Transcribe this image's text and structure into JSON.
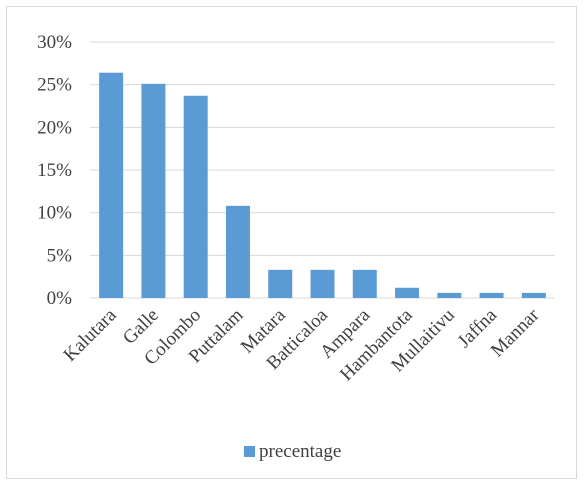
{
  "chart_data": {
    "type": "bar",
    "title": "",
    "xlabel": "",
    "ylabel": "",
    "categories": [
      "Kalutara",
      "Galle",
      "Colombo",
      "Puttalam",
      "Matara",
      "Batticaloa",
      "Ampara",
      "Hambantota",
      "Mullaitivu",
      "Jaffna",
      "Mannar"
    ],
    "series": [
      {
        "name": "precentage",
        "values": [
          0.264,
          0.251,
          0.237,
          0.108,
          0.033,
          0.033,
          0.033,
          0.012,
          0.006,
          0.006,
          0.006
        ]
      }
    ],
    "ylim": [
      0,
      0.3
    ],
    "yticks": [
      0,
      0.05,
      0.1,
      0.15,
      0.2,
      0.25,
      0.3
    ],
    "ytick_labels": [
      "0%",
      "5%",
      "10%",
      "15%",
      "20%",
      "25%",
      "30%"
    ],
    "grid": true,
    "legend_position": "bottom",
    "colors": {
      "bar": "#5b9bd5",
      "grid": "#d9d9d9",
      "text": "#404040"
    }
  }
}
